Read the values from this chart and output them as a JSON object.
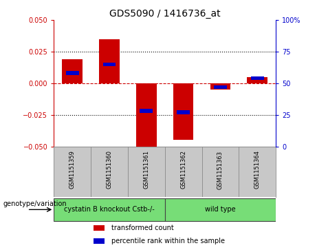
{
  "title": "GDS5090 / 1416736_at",
  "samples": [
    "GSM1151359",
    "GSM1151360",
    "GSM1151361",
    "GSM1151362",
    "GSM1151363",
    "GSM1151364"
  ],
  "transformed_count": [
    0.019,
    0.035,
    -0.052,
    -0.045,
    -0.005,
    0.005
  ],
  "percentile_rank": [
    0.58,
    0.65,
    0.28,
    0.27,
    0.47,
    0.54
  ],
  "ylim_left": [
    -0.05,
    0.05
  ],
  "ylim_right": [
    0,
    100
  ],
  "yticks_left": [
    -0.05,
    -0.025,
    0,
    0.025,
    0.05
  ],
  "yticks_right": [
    0,
    25,
    50,
    75,
    100
  ],
  "bar_color": "#CC0000",
  "percentile_color": "#0000CC",
  "bar_width": 0.55,
  "percentile_bar_width": 0.35,
  "percentile_bar_height": 0.003,
  "zero_line_color": "#CC0000",
  "grid_color": "black",
  "bg_plot": "#FFFFFF",
  "bg_sample_row": "#C8C8C8",
  "group_label": "genotype/variation",
  "groups": [
    {
      "start": 0,
      "end": 2,
      "label": "cystatin B knockout Cstb-/-",
      "color": "#77DD77"
    },
    {
      "start": 3,
      "end": 5,
      "label": "wild type",
      "color": "#77DD77"
    }
  ],
  "legend_items": [
    {
      "label": "transformed count",
      "color": "#CC0000"
    },
    {
      "label": "percentile rank within the sample",
      "color": "#0000CC"
    }
  ],
  "title_fontsize": 10,
  "tick_fontsize": 7,
  "sample_fontsize": 6,
  "group_fontsize": 7,
  "legend_fontsize": 7,
  "group_label_fontsize": 7
}
